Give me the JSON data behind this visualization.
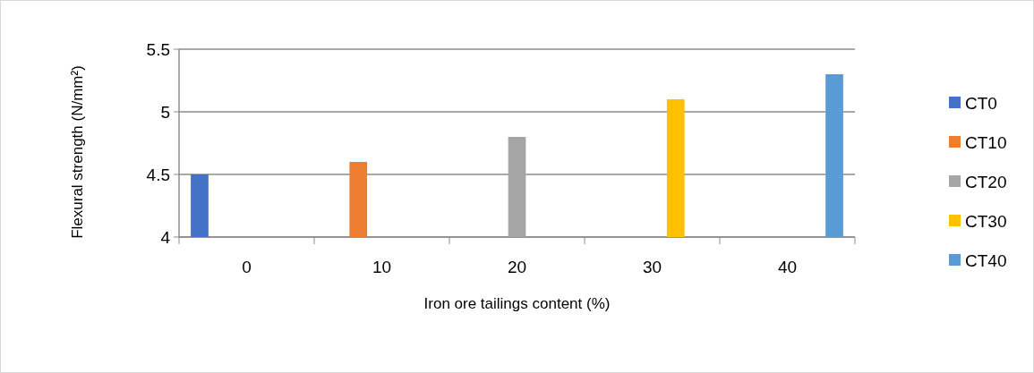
{
  "chart_data": {
    "type": "bar",
    "xlabel": "Iron ore tailings content (%)",
    "ylabel": "Flexural strength (N/mm²)",
    "categories": [
      "0",
      "10",
      "20",
      "30",
      "40"
    ],
    "series": [
      {
        "name": "CT0",
        "color": "#4472c4",
        "values": [
          4.5,
          null,
          null,
          null,
          null
        ]
      },
      {
        "name": "CT10",
        "color": "#ed7d31",
        "values": [
          null,
          4.6,
          null,
          null,
          null
        ]
      },
      {
        "name": "CT20",
        "color": "#a5a5a5",
        "values": [
          null,
          null,
          4.8,
          null,
          null
        ]
      },
      {
        "name": "CT30",
        "color": "#ffc000",
        "values": [
          null,
          null,
          null,
          5.1,
          null
        ]
      },
      {
        "name": "CT40",
        "color": "#5b9bd5",
        "values": [
          null,
          null,
          null,
          null,
          5.3
        ]
      }
    ],
    "ylim": [
      4,
      5.5
    ],
    "yticks": [
      4,
      4.5,
      5,
      5.5
    ],
    "grid": "y",
    "legend": "right"
  }
}
